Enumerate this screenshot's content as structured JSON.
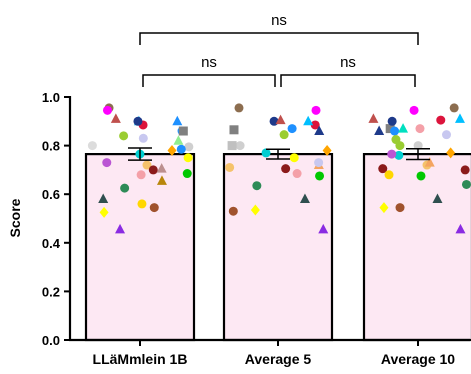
{
  "chart_data": {
    "type": "bar",
    "ylabel": "Score",
    "ylim": [
      0,
      1.0
    ],
    "yticks": [
      "0.0",
      "0.2",
      "0.4",
      "0.6",
      "0.8",
      "1.0"
    ],
    "categories": [
      "LLäMmlein 1B",
      "Average 5",
      "Average 10"
    ],
    "values": [
      0.765,
      0.765,
      0.765
    ],
    "error": [
      0.025,
      0.02,
      0.022
    ],
    "bar_color": "#fde8f3",
    "comparisons": [
      {
        "from": 0,
        "to": 1,
        "label": "ns"
      },
      {
        "from": 1,
        "to": 2,
        "label": "ns"
      },
      {
        "from": 0,
        "to": 2,
        "label": "ns"
      }
    ],
    "points": [
      [
        {
          "y": 0.91,
          "shape": "triangle",
          "color": "#c0504d"
        },
        {
          "y": 0.86,
          "shape": "circle",
          "color": "#1e90ff"
        },
        {
          "y": 0.72,
          "shape": "circle",
          "color": "#f5c26b"
        },
        {
          "y": 0.955,
          "shape": "circle",
          "color": "#8c6d4f"
        },
        {
          "y": 0.8,
          "shape": "circle",
          "color": "#dcdcdc"
        },
        {
          "y": 0.78,
          "shape": "diamond",
          "color": "#ffa500"
        },
        {
          "y": 0.75,
          "shape": "circle",
          "color": "#ffff00"
        },
        {
          "y": 0.685,
          "shape": "circle",
          "color": "#00c800"
        },
        {
          "y": 0.83,
          "shape": "circle",
          "color": "#c8c8f0"
        },
        {
          "y": 0.86,
          "shape": "square",
          "color": "#808080"
        },
        {
          "y": 0.9,
          "shape": "triangle",
          "color": "#00bfff"
        },
        {
          "y": 0.795,
          "shape": "circle",
          "color": "#cfcfcf"
        },
        {
          "y": 0.7,
          "shape": "circle",
          "color": "#8b1a1a"
        },
        {
          "y": 0.545,
          "shape": "circle",
          "color": "#a0522d"
        },
        {
          "y": 0.945,
          "shape": "circle",
          "color": "#ff00ff"
        },
        {
          "y": 0.885,
          "shape": "circle",
          "color": "#dc143c"
        },
        {
          "y": 0.84,
          "shape": "circle",
          "color": "#9acd32"
        },
        {
          "y": 0.785,
          "shape": "circle",
          "color": "#1e90ff"
        },
        {
          "y": 0.73,
          "shape": "circle",
          "color": "#ba55d3"
        },
        {
          "y": 0.68,
          "shape": "circle",
          "color": "#f4a0a8"
        },
        {
          "y": 0.625,
          "shape": "circle",
          "color": "#2e8b57"
        },
        {
          "y": 0.58,
          "shape": "triangle",
          "color": "#2f4f4f"
        },
        {
          "y": 0.56,
          "shape": "circle",
          "color": "#ffd700"
        },
        {
          "y": 0.525,
          "shape": "diamond",
          "color": "#ffff00"
        },
        {
          "y": 0.455,
          "shape": "triangle",
          "color": "#8a2be2"
        },
        {
          "y": 0.9,
          "shape": "circle",
          "color": "#1e3a8a"
        },
        {
          "y": 0.82,
          "shape": "triangle",
          "color": "#90ee90"
        },
        {
          "y": 0.9,
          "shape": "triangle",
          "color": "#1e90ff"
        },
        {
          "y": 0.765,
          "shape": "circle",
          "color": "#00ced1"
        },
        {
          "y": 0.705,
          "shape": "triangle",
          "color": "#bc8f8f"
        },
        {
          "y": 0.655,
          "shape": "triangle",
          "color": "#b8860b"
        }
      ],
      [
        {
          "y": 0.9,
          "shape": "circle",
          "color": "#1e3a8a"
        },
        {
          "y": 0.845,
          "shape": "circle",
          "color": "#9acd32"
        },
        {
          "y": 0.72,
          "shape": "triangle",
          "color": "#f4a460"
        },
        {
          "y": 0.955,
          "shape": "circle",
          "color": "#8c6d4f"
        },
        {
          "y": 0.885,
          "shape": "circle",
          "color": "#dc143c"
        },
        {
          "y": 0.905,
          "shape": "triangle",
          "color": "#c0504d"
        },
        {
          "y": 0.865,
          "shape": "square",
          "color": "#808080"
        },
        {
          "y": 0.8,
          "shape": "circle",
          "color": "#cfcfcf"
        },
        {
          "y": 0.78,
          "shape": "diamond",
          "color": "#ffa500"
        },
        {
          "y": 0.73,
          "shape": "circle",
          "color": "#c8c8f0"
        },
        {
          "y": 0.77,
          "shape": "circle",
          "color": "#00ced1"
        },
        {
          "y": 0.685,
          "shape": "circle",
          "color": "#f4a0a8"
        },
        {
          "y": 0.635,
          "shape": "circle",
          "color": "#2e8b57"
        },
        {
          "y": 0.58,
          "shape": "triangle",
          "color": "#2f4f4f"
        },
        {
          "y": 0.535,
          "shape": "diamond",
          "color": "#ffff00"
        },
        {
          "y": 0.53,
          "shape": "circle",
          "color": "#a0522d"
        },
        {
          "y": 0.455,
          "shape": "triangle",
          "color": "#8a2be2"
        },
        {
          "y": 0.945,
          "shape": "circle",
          "color": "#ff00ff"
        },
        {
          "y": 0.9,
          "shape": "triangle",
          "color": "#00bfff"
        },
        {
          "y": 0.87,
          "shape": "circle",
          "color": "#1e90ff"
        },
        {
          "y": 0.86,
          "shape": "triangle",
          "color": "#1e3a8a"
        },
        {
          "y": 0.8,
          "shape": "square",
          "color": "#c0c0c0"
        },
        {
          "y": 0.75,
          "shape": "circle",
          "color": "#ffff00"
        },
        {
          "y": 0.705,
          "shape": "circle",
          "color": "#8b1a1a"
        },
        {
          "y": 0.71,
          "shape": "circle",
          "color": "#f5c26b"
        },
        {
          "y": 0.675,
          "shape": "circle",
          "color": "#00c800"
        }
      ],
      [
        {
          "y": 0.87,
          "shape": "square",
          "color": "#808080"
        },
        {
          "y": 0.8,
          "shape": "circle",
          "color": "#9acd32"
        },
        {
          "y": 0.76,
          "shape": "circle",
          "color": "#00ced1"
        },
        {
          "y": 0.72,
          "shape": "circle",
          "color": "#f5c26b"
        },
        {
          "y": 0.945,
          "shape": "circle",
          "color": "#ff00ff"
        },
        {
          "y": 0.905,
          "shape": "circle",
          "color": "#dc143c"
        },
        {
          "y": 0.87,
          "shape": "circle",
          "color": "#f4a0a8"
        },
        {
          "y": 0.845,
          "shape": "circle",
          "color": "#c8c8f0"
        },
        {
          "y": 0.8,
          "shape": "circle",
          "color": "#cfcfcf"
        },
        {
          "y": 0.77,
          "shape": "diamond",
          "color": "#ffa500"
        },
        {
          "y": 0.73,
          "shape": "triangle",
          "color": "#f4a460"
        },
        {
          "y": 0.705,
          "shape": "circle",
          "color": "#8b1a1a"
        },
        {
          "y": 0.68,
          "shape": "circle",
          "color": "#ffd700"
        },
        {
          "y": 0.64,
          "shape": "circle",
          "color": "#2e8b57"
        },
        {
          "y": 0.58,
          "shape": "triangle",
          "color": "#2f4f4f"
        },
        {
          "y": 0.545,
          "shape": "diamond",
          "color": "#ffff00"
        },
        {
          "y": 0.455,
          "shape": "triangle",
          "color": "#8a2be2"
        },
        {
          "y": 0.9,
          "shape": "circle",
          "color": "#1e3a8a"
        },
        {
          "y": 0.91,
          "shape": "triangle",
          "color": "#00bfff"
        },
        {
          "y": 0.86,
          "shape": "triangle",
          "color": "#1e3a8a"
        },
        {
          "y": 0.86,
          "shape": "circle",
          "color": "#1e90ff"
        },
        {
          "y": 0.955,
          "shape": "circle",
          "color": "#8c6d4f"
        },
        {
          "y": 0.91,
          "shape": "triangle",
          "color": "#c0504d"
        },
        {
          "y": 0.87,
          "shape": "triangle",
          "color": "#00e0c0"
        },
        {
          "y": 0.825,
          "shape": "circle",
          "color": "#9acd32"
        },
        {
          "y": 0.7,
          "shape": "circle",
          "color": "#8b1a1a"
        },
        {
          "y": 0.675,
          "shape": "circle",
          "color": "#00c800"
        },
        {
          "y": 0.545,
          "shape": "circle",
          "color": "#a0522d"
        },
        {
          "y": 0.765,
          "shape": "circle",
          "color": "#ba55d3"
        }
      ]
    ]
  }
}
